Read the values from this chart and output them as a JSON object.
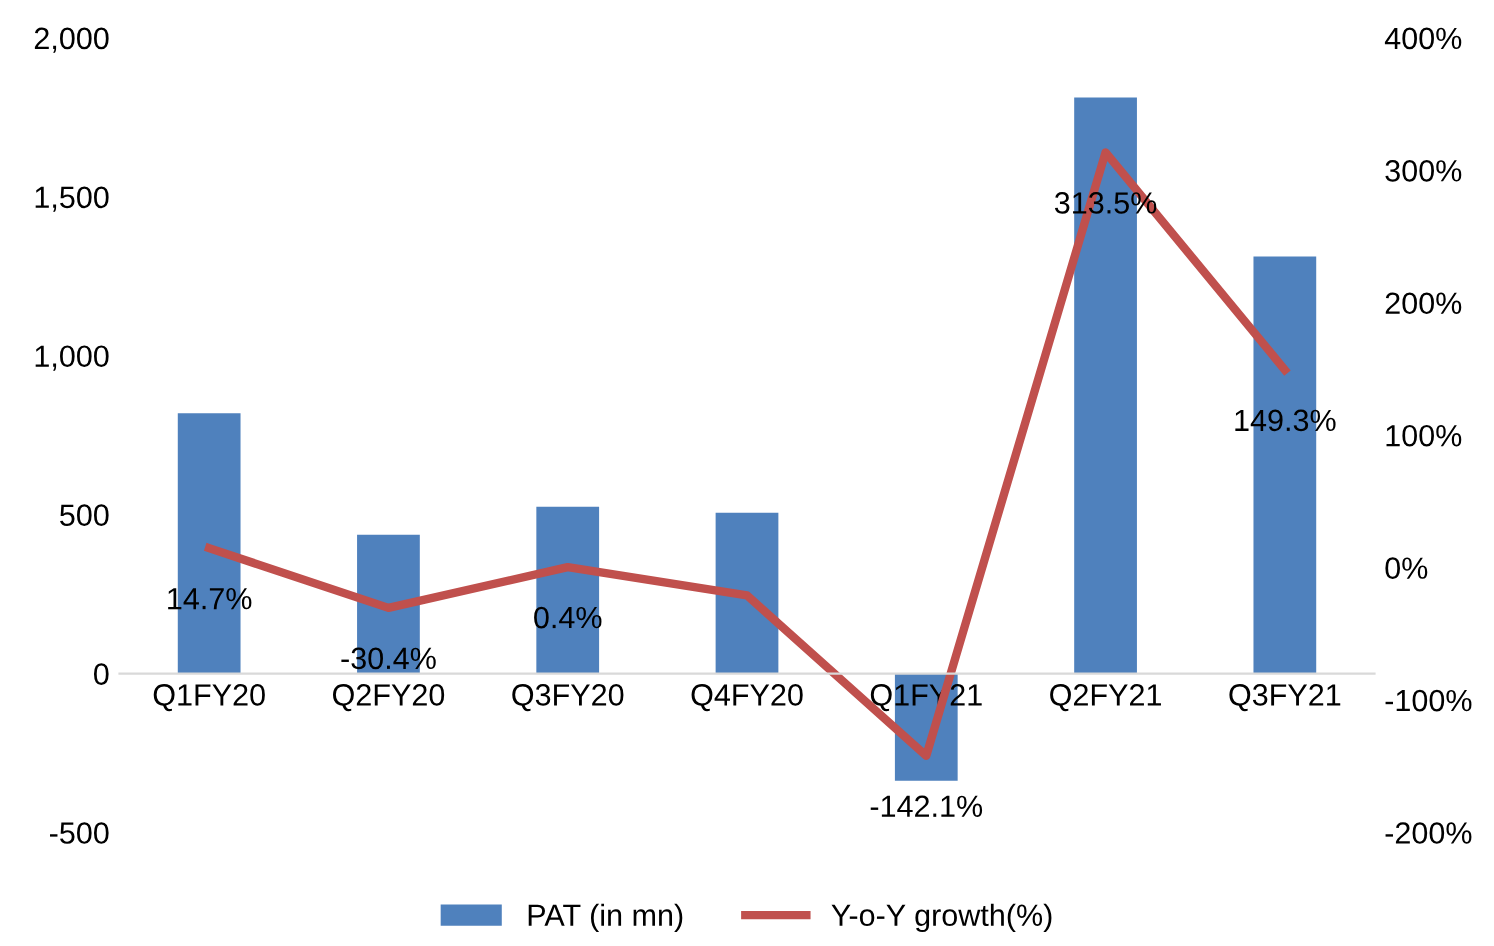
{
  "chart_data": {
    "type": "bar",
    "categories": [
      "Q1FY20",
      "Q2FY20",
      "Q3FY20",
      "Q4FY20",
      "Q1FY21",
      "Q2FY21",
      "Q3FY21"
    ],
    "series": [
      {
        "name": "PAT (in mn)",
        "color": "#4f81bd",
        "values": [
          819,
          437,
          525,
          506,
          -337,
          1812,
          1312
        ]
      },
      {
        "name": "Y-o-Y growth(%)",
        "type": "line",
        "axis": "y2",
        "color": "#c0504d",
        "values": [
          14.7,
          -30.4,
          0.4,
          -21,
          -142.1,
          313.5,
          149.3
        ],
        "value_labels": [
          "14.7%",
          "-30.4%",
          "0.4%",
          null,
          "-142.1%",
          "313.5%",
          "149.3%"
        ]
      }
    ],
    "ylim": [
      -500,
      2000
    ],
    "yticks": [
      -500,
      {
        "value": 0,
        "label": "0"
      },
      500,
      {
        "value": 1000,
        "label": "1,000"
      },
      {
        "value": 1500,
        "label": "1,500"
      },
      {
        "value": 2000,
        "label": "2,000"
      }
    ],
    "y2lim": [
      -200,
      400
    ],
    "y2ticks": [
      {
        "value": -200,
        "label": "-200%"
      },
      {
        "value": -100,
        "label": "-100%"
      },
      {
        "value": 0,
        "label": "0%"
      },
      {
        "value": 100,
        "label": "100%"
      },
      {
        "value": 200,
        "label": "200%"
      },
      {
        "value": 300,
        "label": "300%"
      },
      {
        "value": 400,
        "label": "400%"
      }
    ],
    "grid": false,
    "legend": "bottom",
    "marker": "none",
    "line_style": "solid"
  }
}
